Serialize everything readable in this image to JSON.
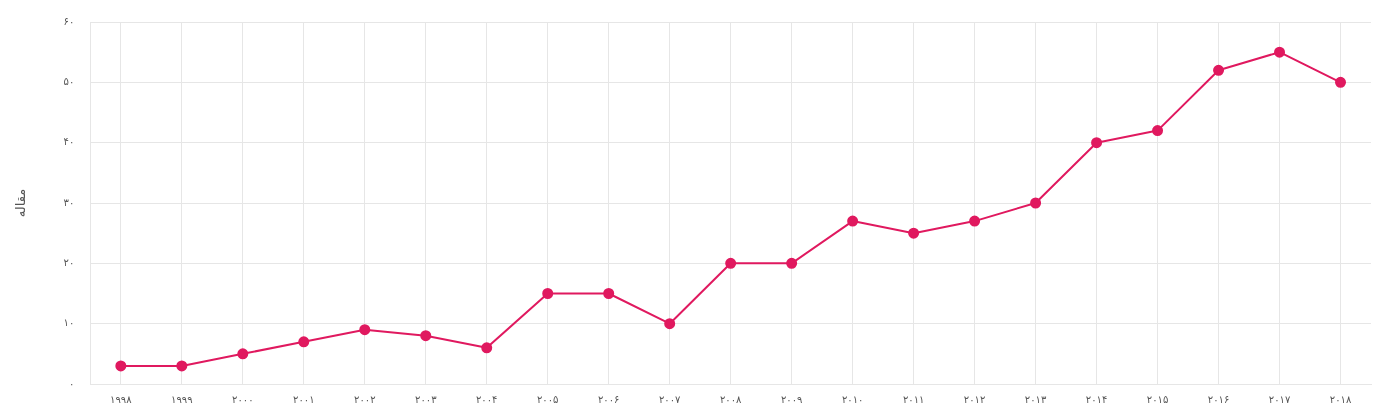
{
  "chart_data": {
    "type": "line",
    "ylabel": "مقاله",
    "categories": [
      "۱۹۹۸",
      "۱۹۹۹",
      "۲۰۰۰",
      "۲۰۰۱",
      "۲۰۰۲",
      "۲۰۰۳",
      "۲۰۰۴",
      "۲۰۰۵",
      "۲۰۰۶",
      "۲۰۰۷",
      "۲۰۰۸",
      "۲۰۰۹",
      "۲۰۱۰",
      "۲۰۱۱",
      "۲۰۱۲",
      "۲۰۱۳",
      "۲۰۱۴",
      "۲۰۱۵",
      "۲۰۱۶",
      "۲۰۱۷",
      "۲۰۱۸"
    ],
    "series": [
      {
        "color": "#e0195f",
        "values": [
          3,
          3,
          5,
          7,
          9,
          8,
          6,
          15,
          15,
          10,
          20,
          20,
          27,
          25,
          27,
          30,
          40,
          42,
          52,
          55,
          50
        ]
      }
    ],
    "ylim": [
      0,
      60
    ],
    "yticks": [
      {
        "value": 0,
        "label": "۰"
      },
      {
        "value": 10,
        "label": "۱۰"
      },
      {
        "value": 20,
        "label": "۲۰"
      },
      {
        "value": 30,
        "label": "۳۰"
      },
      {
        "value": 40,
        "label": "۴۰"
      },
      {
        "value": 50,
        "label": "۵۰"
      },
      {
        "value": 60,
        "label": "۶۰"
      }
    ],
    "grid": true,
    "legend": false,
    "marker": "circle",
    "line_style": "solid"
  }
}
